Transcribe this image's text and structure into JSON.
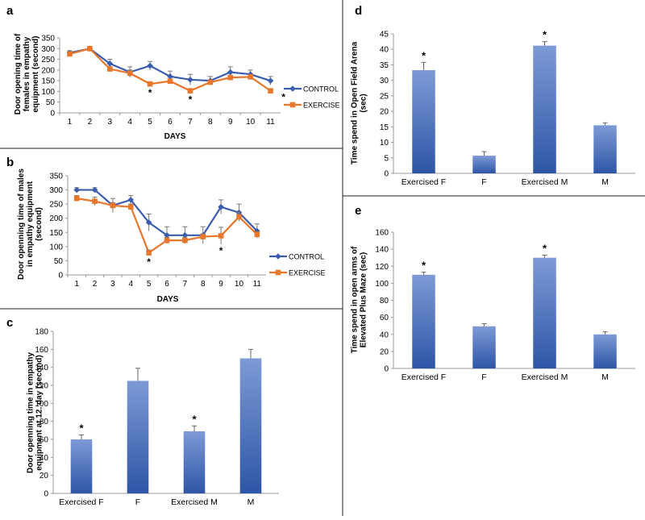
{
  "colors": {
    "control": "#3a5dad",
    "exercise": "#e8762b",
    "bar_dark": "#2e55a6",
    "bar_light": "#7d9ad6",
    "axis": "#888888",
    "text": "#000000"
  },
  "chart_data": [
    {
      "id": "a",
      "panel_label": "a",
      "type": "line",
      "title": "",
      "ylabel": [
        "Door opening time of",
        "females in empathy",
        "equipment (second)"
      ],
      "xlabel": "DAYS",
      "x": [
        1,
        2,
        3,
        4,
        5,
        6,
        7,
        8,
        9,
        10,
        11
      ],
      "xticks": [
        "1",
        "2",
        "3",
        "4",
        "5",
        "6",
        "7",
        "8",
        "9",
        "10",
        "11"
      ],
      "ylim": [
        0,
        350
      ],
      "ytick_step": 50,
      "series": [
        {
          "name": "CONTROL",
          "color": "#3a5dad",
          "marker": "diamond",
          "values": [
            280,
            300,
            230,
            190,
            220,
            170,
            155,
            150,
            190,
            180,
            150
          ],
          "errors": [
            10,
            5,
            20,
            25,
            20,
            25,
            25,
            20,
            25,
            20,
            20
          ]
        },
        {
          "name": "EXERCISE",
          "color": "#e8762b",
          "marker": "square",
          "values": [
            275,
            300,
            205,
            185,
            135,
            148,
            103,
            143,
            165,
            168,
            103
          ],
          "errors": [
            10,
            5,
            10,
            15,
            10,
            10,
            10,
            10,
            10,
            10,
            10
          ]
        }
      ],
      "stars_at_x": [
        5,
        7,
        11
      ],
      "star_text": "*"
    },
    {
      "id": "b",
      "panel_label": "b",
      "type": "line",
      "title": "",
      "ylabel": [
        "Door openning time of males",
        "in empathy equipment",
        "(second)"
      ],
      "xlabel": "DAYS",
      "x": [
        1,
        2,
        3,
        4,
        5,
        6,
        7,
        8,
        9,
        10,
        11
      ],
      "xticks": [
        "1",
        "2",
        "3",
        "4",
        "5",
        "6",
        "7",
        "8",
        "9",
        "10",
        "11"
      ],
      "ylim": [
        0,
        350
      ],
      "ytick_step": 50,
      "series": [
        {
          "name": "CONTROL",
          "color": "#3a5dad",
          "marker": "diamond",
          "values": [
            300,
            300,
            245,
            265,
            185,
            140,
            140,
            140,
            240,
            220,
            155
          ],
          "errors": [
            8,
            8,
            25,
            15,
            30,
            30,
            30,
            30,
            25,
            30,
            25
          ]
        },
        {
          "name": "EXERCISE",
          "color": "#e8762b",
          "marker": "square",
          "values": [
            270,
            260,
            245,
            240,
            78,
            122,
            122,
            135,
            138,
            205,
            143
          ],
          "errors": [
            10,
            15,
            10,
            10,
            10,
            10,
            10,
            10,
            30,
            15,
            10
          ]
        }
      ],
      "stars_at_x": [
        5,
        9
      ],
      "star_text": "*"
    },
    {
      "id": "c",
      "panel_label": "c",
      "type": "bar",
      "ylabel": [
        "Door openning time in empathy",
        "equipment at 12. day (second)"
      ],
      "categories": [
        "Exercised F",
        "F",
        "Exercised M",
        "M"
      ],
      "values": [
        60,
        125,
        69,
        150
      ],
      "errors": [
        5,
        14,
        6,
        10
      ],
      "stars": [
        true,
        false,
        true,
        false
      ],
      "star_text": "*",
      "ylim": [
        0,
        180
      ],
      "ytick_step": 20
    },
    {
      "id": "d",
      "panel_label": "d",
      "type": "bar",
      "ylabel": [
        "Time spend in Open Field Arena",
        "(sec)"
      ],
      "categories": [
        "Exercised F",
        "F",
        "Exercised M",
        "M"
      ],
      "values": [
        33.3,
        5.7,
        41.2,
        15.5
      ],
      "errors": [
        2.5,
        1.3,
        1.3,
        0.8
      ],
      "stars": [
        true,
        false,
        true,
        false
      ],
      "star_text": "*",
      "ylim": [
        0,
        45
      ],
      "ytick_step": 5
    },
    {
      "id": "e",
      "panel_label": "e",
      "type": "bar",
      "ylabel": [
        "Time spend in open arms of",
        "Elevated Plus Maze (sec)"
      ],
      "categories": [
        "Exercised F",
        "F",
        "Exercised M",
        "M"
      ],
      "values": [
        110,
        49.5,
        130,
        40
      ],
      "errors": [
        3,
        3,
        3,
        3
      ],
      "stars": [
        true,
        false,
        true,
        false
      ],
      "star_text": "*",
      "ylim": [
        0,
        160
      ],
      "ytick_step": 20
    }
  ]
}
